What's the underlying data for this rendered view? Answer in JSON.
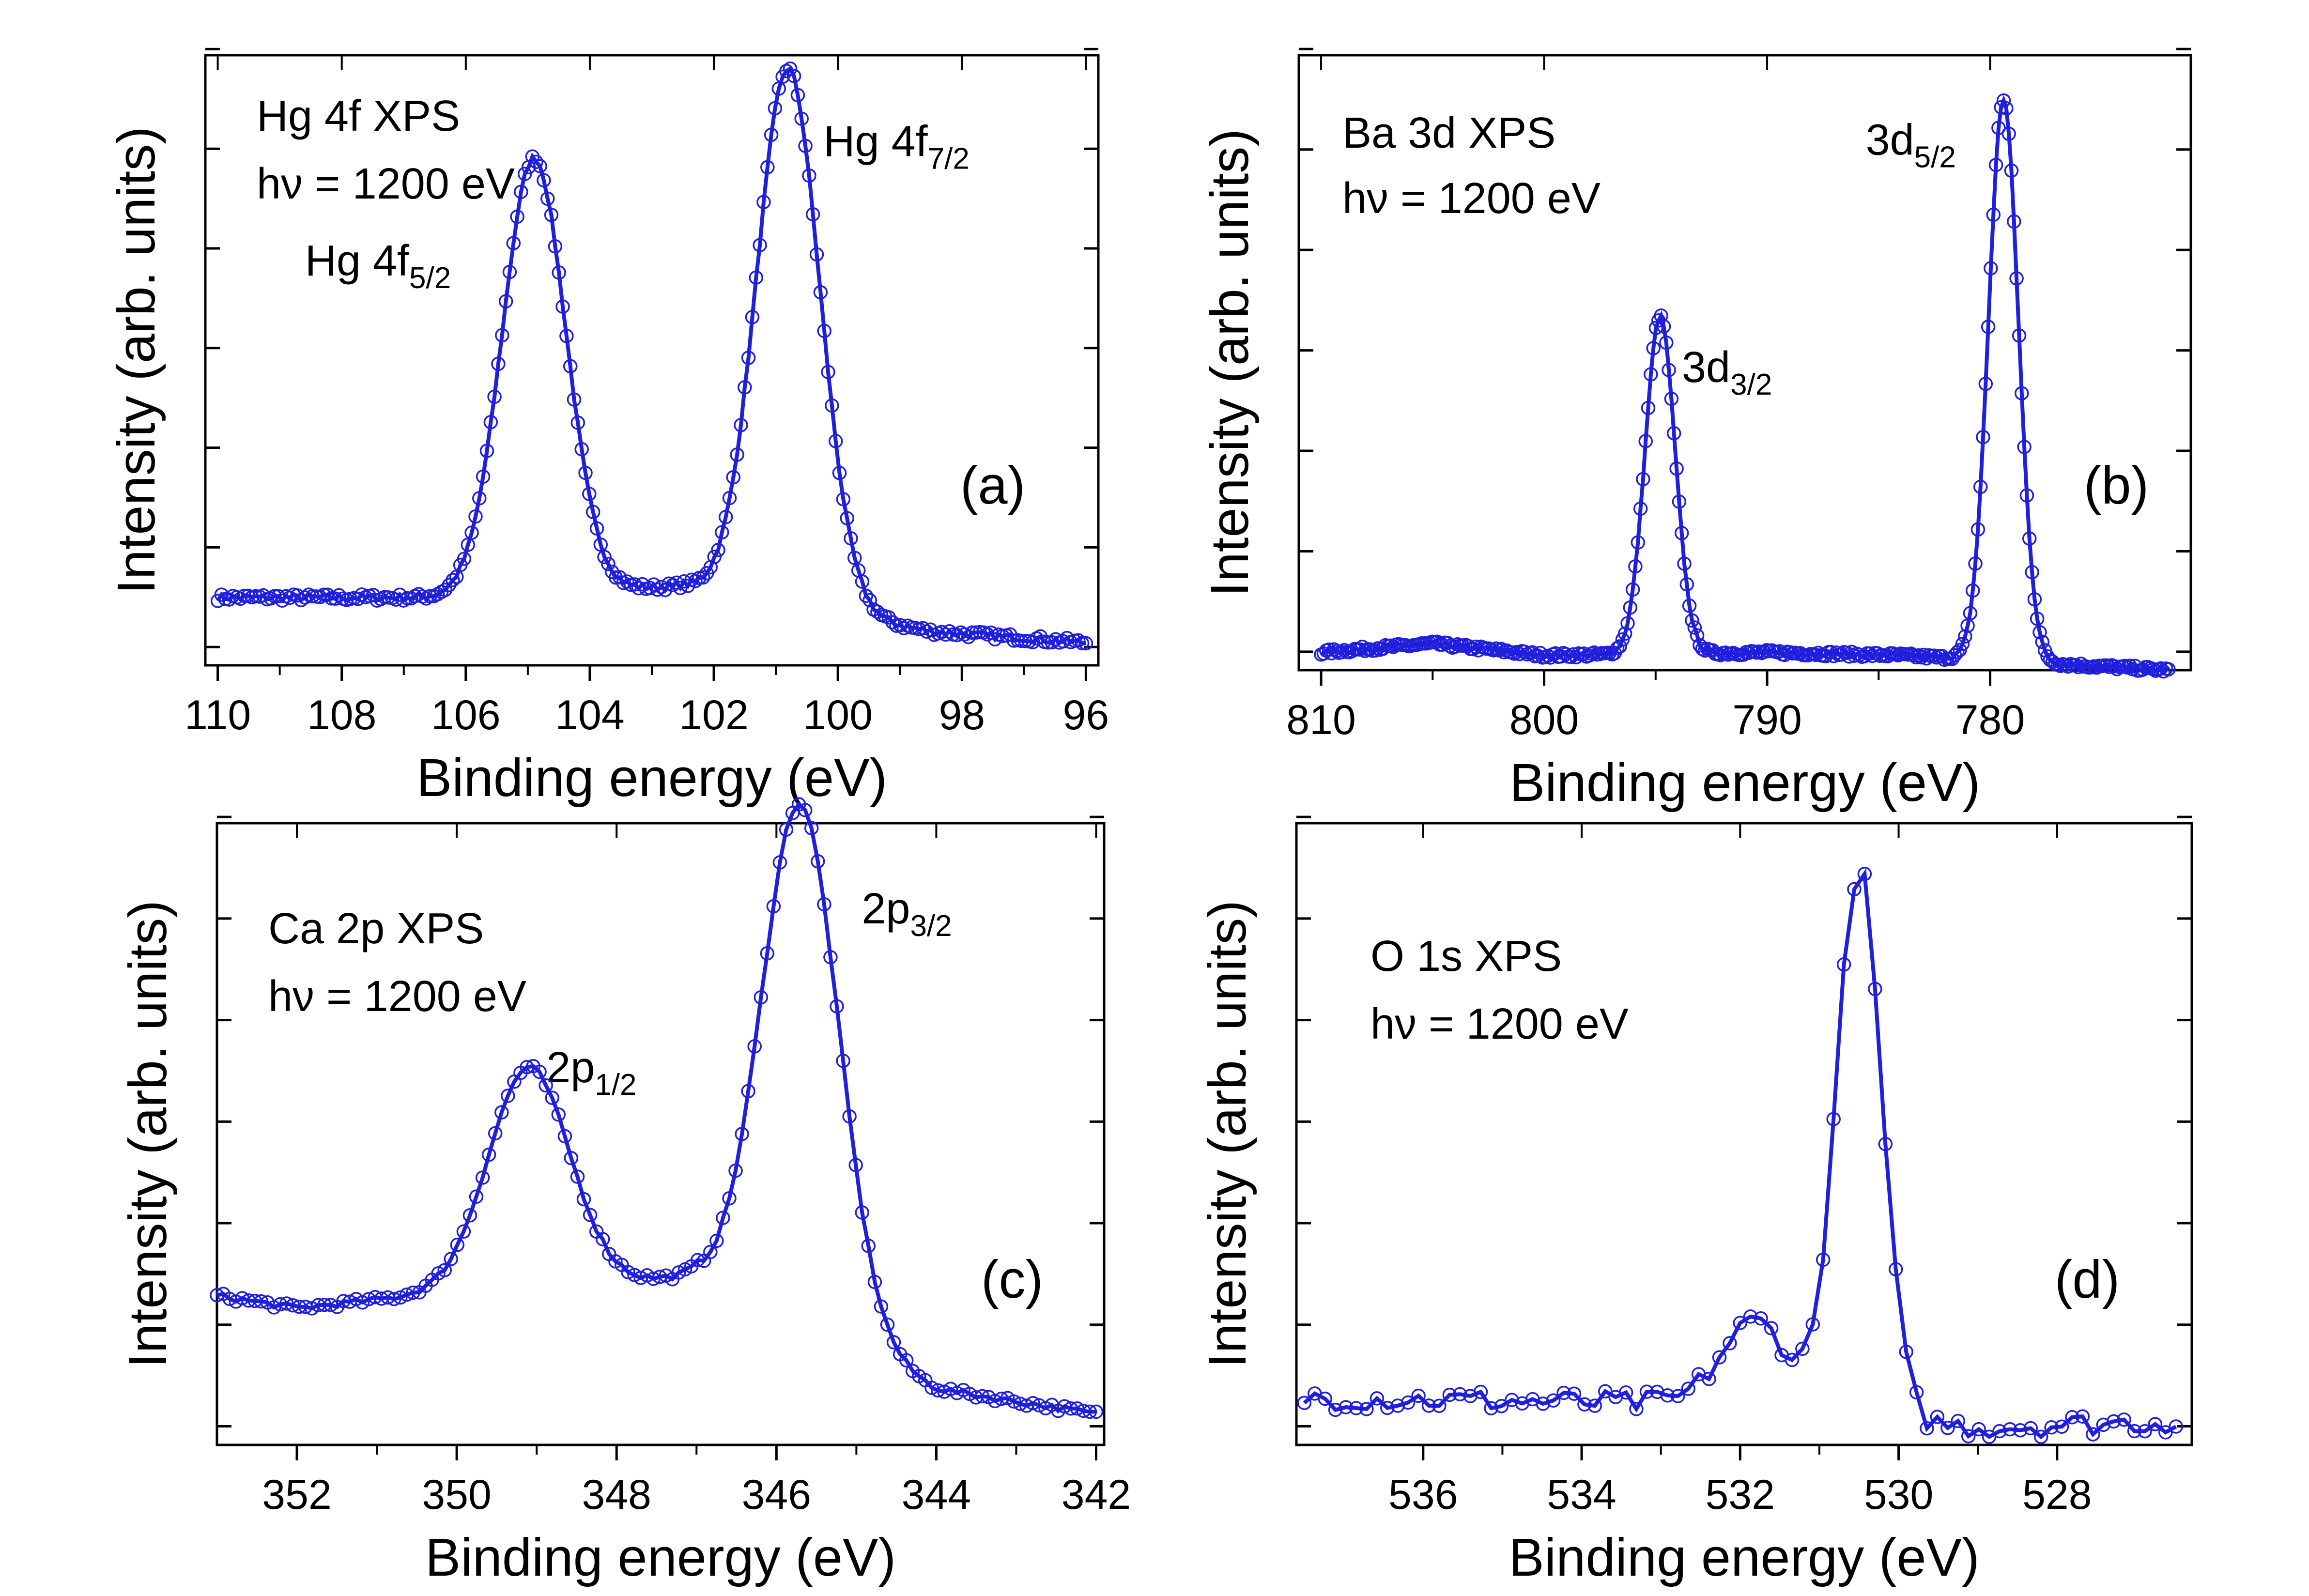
{
  "figure": {
    "style": {
      "line_color": "#1f1fdc",
      "marker_color": "#1f1fdc",
      "background": "#ffffff"
    }
  },
  "chart_data": [
    {
      "id": "a",
      "type": "line",
      "panel_label": "(a)",
      "xlabel": "Binding energy (eV)",
      "ylabel": "Intensity (arb. units)",
      "xlim": [
        110.2,
        95.8
      ],
      "ylim": [
        0.0,
        1.08
      ],
      "xticks": [
        110,
        108,
        106,
        104,
        102,
        100,
        98,
        96
      ],
      "xtick_labels": [
        "110",
        "108",
        "106",
        "104",
        "102",
        "100",
        "98",
        "96"
      ],
      "title_lines": [
        {
          "text": "Hg 4f    XPS"
        },
        {
          "text": "hν = 1200 eV"
        }
      ],
      "peak_annotations": [
        {
          "main": "Hg 4f",
          "sub": "5/2",
          "x": 105.0,
          "y": 0.69
        },
        {
          "main": "Hg 4f",
          "sub": "7/2",
          "x": 100.7,
          "y": 0.91
        }
      ],
      "series": [
        {
          "name": "Hg 4f",
          "peaks": [
            {
              "center": 104.9,
              "height": 0.77,
              "width": 0.72
            },
            {
              "center": 100.8,
              "height": 0.95,
              "width": 0.72
            }
          ],
          "background": [
            [
              110.0,
              0.12
            ],
            [
              106.5,
              0.12
            ],
            [
              102.5,
              0.14
            ],
            [
              98.5,
              0.06
            ],
            [
              96.0,
              0.04
            ]
          ],
          "noise": 0.006,
          "n_points": 230
        }
      ]
    },
    {
      "id": "b",
      "type": "line",
      "panel_label": "(b)",
      "xlabel": "Binding energy (eV)",
      "ylabel": "Intensity (arb. units)",
      "xlim": [
        811,
        771
      ],
      "ylim": [
        0.0,
        1.04
      ],
      "xticks": [
        810,
        800,
        790,
        780
      ],
      "xtick_labels": [
        "810",
        "800",
        "790",
        "780"
      ],
      "title_lines": [
        {
          "text": "Ba 3d XPS"
        },
        {
          "text": "hν = 1200 eV"
        }
      ],
      "peak_annotations": [
        {
          "main": "3d",
          "sub": "3/2",
          "x": 794.8,
          "y": 0.52
        },
        {
          "main": "3d",
          "sub": "5/2",
          "x": 779.5,
          "y": 0.88
        }
      ],
      "series": [
        {
          "name": "Ba 3d",
          "peaks": [
            {
              "center": 794.8,
              "height": 0.57,
              "width": 0.95
            },
            {
              "center": 779.4,
              "height": 0.95,
              "width": 0.95
            }
          ],
          "background": [
            [
              810.0,
              0.03
            ],
            [
              805.0,
              0.045
            ],
            [
              800.0,
              0.025
            ],
            [
              790.0,
              0.03
            ],
            [
              784.0,
              0.025
            ],
            [
              772.0,
              0.0
            ]
          ],
          "noise": 0.004,
          "n_points": 330
        }
      ]
    },
    {
      "id": "c",
      "type": "line",
      "panel_label": "(c)",
      "xlabel": "Binding energy (eV)",
      "ylabel": "Intensity (arb. units)",
      "xlim": [
        353.0,
        341.9
      ],
      "ylim": [
        0.0,
        1.0
      ],
      "xticks": [
        352,
        350,
        348,
        346,
        344,
        342
      ],
      "xtick_labels": [
        "352",
        "350",
        "348",
        "346",
        "344",
        "342"
      ],
      "title_lines": [
        {
          "text": "Ca 2p XPS"
        },
        {
          "text": "hν = 1200 eV"
        }
      ],
      "peak_annotations": [
        {
          "main": "2p",
          "sub": "1/2",
          "x": 349.0,
          "y": 0.56
        },
        {
          "main": "2p",
          "sub": "3/2",
          "x": 345.6,
          "y": 0.87
        }
      ],
      "series": [
        {
          "name": "Ca 2p",
          "peaks": [
            {
              "center": 349.1,
              "height": 0.355,
              "width": 0.72
            },
            {
              "center": 345.7,
              "height": 0.84,
              "width": 0.68
            }
          ],
          "background": [
            [
              353.0,
              0.24
            ],
            [
              352.0,
              0.22
            ],
            [
              350.5,
              0.24
            ],
            [
              347.0,
              0.27
            ],
            [
              344.0,
              0.09
            ],
            [
              342.0,
              0.05
            ]
          ],
          "noise": 0.005,
          "n_points": 140
        }
      ]
    },
    {
      "id": "d",
      "type": "line",
      "panel_label": "(d)",
      "xlabel": "Binding energy (eV)",
      "ylabel": "Intensity (arb. units)",
      "xlim": [
        537.6,
        526.3
      ],
      "ylim": [
        0.0,
        1.05
      ],
      "xticks": [
        536,
        534,
        532,
        530,
        528
      ],
      "xtick_labels": [
        "536",
        "534",
        "532",
        "530",
        "528"
      ],
      "title_lines": [
        {
          "text": "O 1s   XPS"
        },
        {
          "text": "hν = 1200 eV"
        }
      ],
      "peak_annotations": [],
      "series": [
        {
          "name": "O 1s",
          "peaks": [
            {
              "center": 530.5,
              "height": 0.93,
              "width": 0.4
            },
            {
              "center": 531.8,
              "height": 0.15,
              "width": 0.62
            }
          ],
          "background": [
            [
              537.5,
              0.08
            ],
            [
              533.0,
              0.07
            ],
            [
              529.0,
              0.03
            ],
            [
              526.5,
              0.04
            ]
          ],
          "noise": 0.02,
          "n_points": 85
        }
      ]
    }
  ]
}
